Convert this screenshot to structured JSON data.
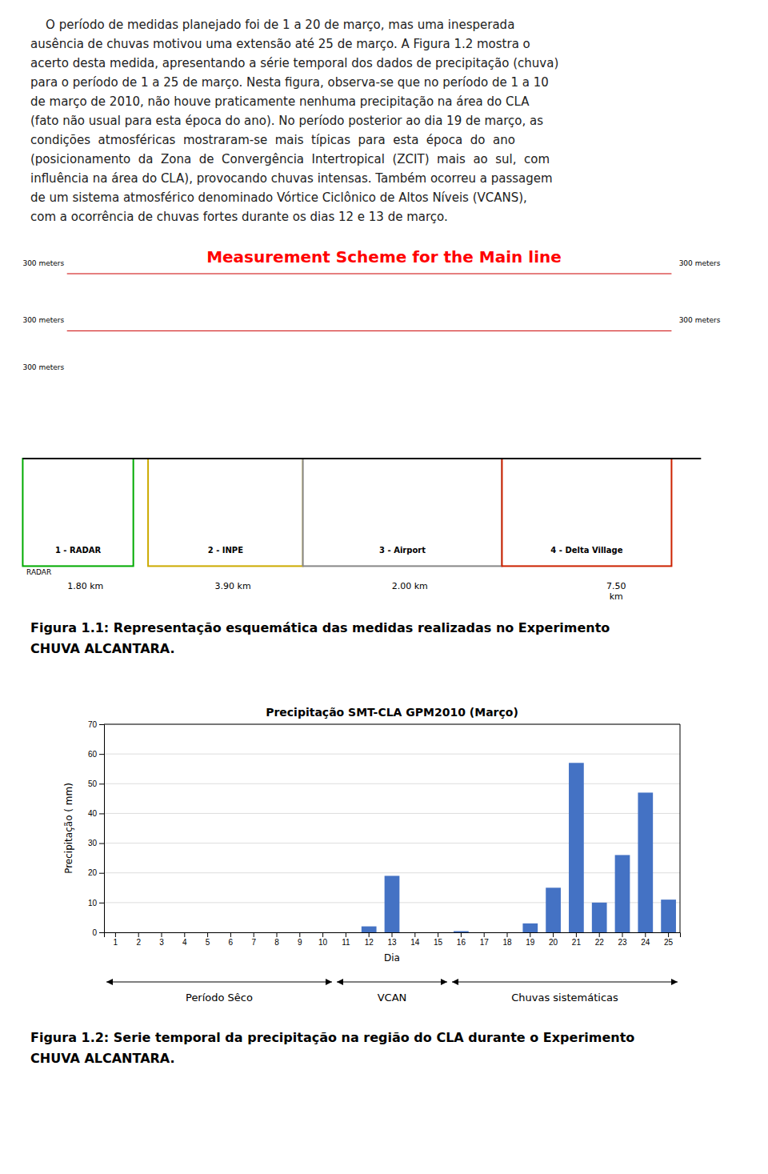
{
  "paragraph": [
    "    O período de medidas planejado foi de 1 a 20 de março, mas uma inesperada",
    "ausência de chuvas motivou uma extensão até 25 de março. A Figura 1.2 mostra o",
    "acerto desta medida, apresentando a série temporal dos dados de precipitação (chuva)",
    "para o período de 1 a 25 de março. Nesta figura, observa-se que no período de 1 a 10",
    "de março de 2010, não houve praticamente nenhuma precipitação na área do CLA",
    "(fato não usual para esta época do ano). No período posterior ao dia 19 de março, as",
    "condições  atmosféricas  mostraram-se  mais  típicas  para  esta  época  do  ano",
    "(posicionamento  da  Zona  de  Convergência  Intertropical  (ZCIT)  mais  ao  sul,  com",
    "influência na área do CLA), provocando chuvas intensas. Também ocorreu a passagem",
    "de um sistema atmosférico denominado Vórtice Ciclônico de Altos Níveis (VCANS),",
    "com a ocorrência de chuvas fortes durante os dias 12 e 13 de março."
  ],
  "scheme": {
    "title": "Measurement Scheme for the Main line",
    "title_color": "red",
    "stations": [
      "1 - RADAR",
      "2 - INPE",
      "3 - Airport",
      "4 - Delta Village"
    ],
    "colors": [
      "#00aa00",
      "#ccaa00",
      "#888888",
      "#cc2200"
    ],
    "sublabel": "RADAR",
    "distances": [
      "1.80 km",
      "3.90 km",
      "2.00 km",
      "7.50\nkm"
    ],
    "heights": [
      "300 meters",
      "300 meters",
      "300 meters",
      "300 meters",
      "300 meters"
    ],
    "path_color": "#cc0000"
  },
  "figure_1_caption": [
    "Figura 1.1: Representação esquemática das medidas realizadas no Experimento",
    "CHUVA ALCANTARA."
  ],
  "chart_data": {
    "type": "bar",
    "title": "Precipitação SMT-CLA GPM2010 (Março)",
    "xlabel": "Dia",
    "ylabel": "Precipitação ( mm)",
    "categories": [
      1,
      2,
      3,
      4,
      5,
      6,
      7,
      8,
      9,
      10,
      11,
      12,
      13,
      14,
      15,
      16,
      17,
      18,
      19,
      20,
      21,
      22,
      23,
      24,
      25
    ],
    "values": [
      0,
      0,
      0,
      0,
      0,
      0,
      0,
      0,
      0,
      0,
      0,
      2,
      19,
      0,
      0,
      0.4,
      0,
      0,
      3,
      15,
      57,
      10,
      26,
      47,
      11
    ],
    "color": "#4472C4",
    "ylim": [
      0,
      70
    ],
    "yticks": [
      0,
      10,
      20,
      30,
      40,
      50,
      60,
      70
    ],
    "grid": true,
    "annotations": [
      {
        "text": "Período Sêco",
        "start": 1,
        "end": 10
      },
      {
        "text": "VCAN",
        "start": 11,
        "end": 15
      },
      {
        "text": "Chuvas sistemáticas",
        "start": 16,
        "end": 25
      }
    ]
  },
  "figure_2_caption": [
    "Figura 1.2: Serie temporal da precipitação na região do CLA durante o Experimento",
    "CHUVA ALCANTARA."
  ]
}
